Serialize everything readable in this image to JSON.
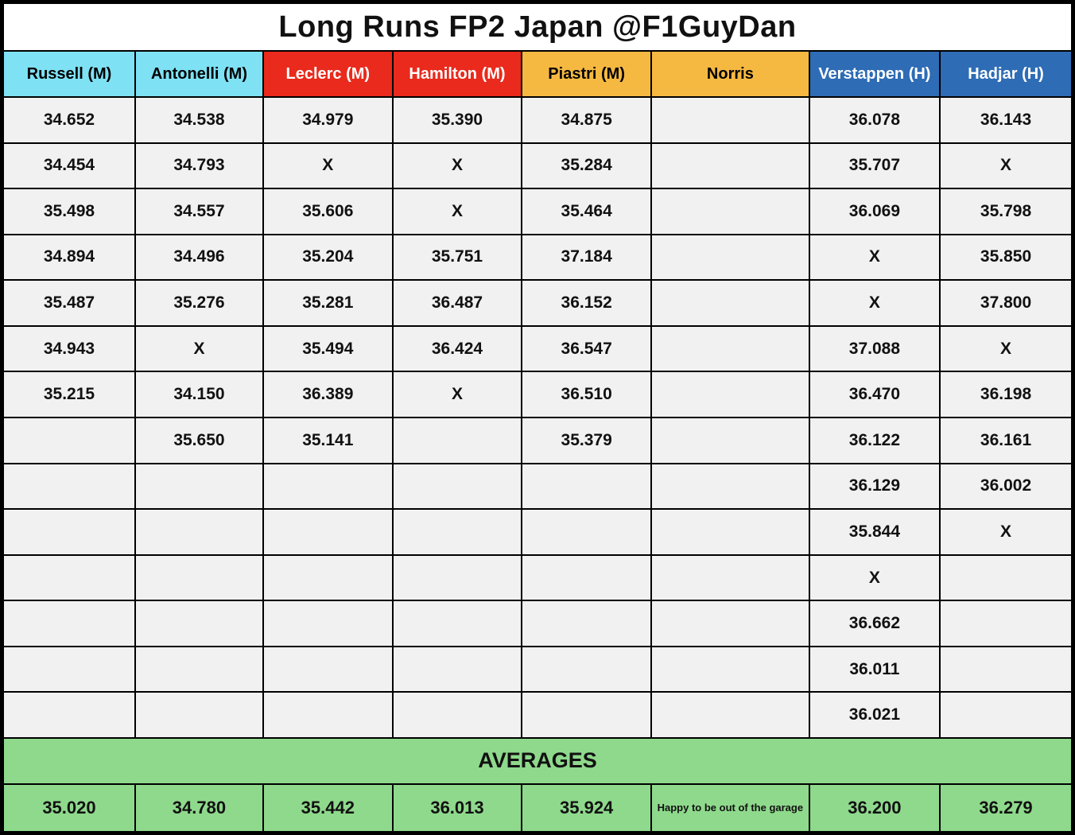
{
  "title": "Long Runs FP2 Japan @F1GuyDan",
  "colors": {
    "border": "#000000",
    "title_bg": "#ffffff",
    "cell_bg": "#f1f1f1",
    "mercedes_cyan": "#7ee1f4",
    "ferrari_red": "#e92a1c",
    "mclaren_yellow": "#f5b942",
    "redbull_blue": "#2e6cb5",
    "averages_green": "#8fd98c"
  },
  "chart_data": {
    "type": "table",
    "title": "Long Runs FP2 Japan @F1GuyDan",
    "columns": [
      {
        "label": "Russell (M)",
        "bg": "#7ee1f4",
        "text": "#000000"
      },
      {
        "label": "Antonelli (M)",
        "bg": "#7ee1f4",
        "text": "#000000"
      },
      {
        "label": "Leclerc (M)",
        "bg": "#e92a1c",
        "text": "#ffffff"
      },
      {
        "label": "Hamilton (M)",
        "bg": "#e92a1c",
        "text": "#ffffff"
      },
      {
        "label": "Piastri (M)",
        "bg": "#f5b942",
        "text": "#000000"
      },
      {
        "label": "Norris",
        "bg": "#f5b942",
        "text": "#000000"
      },
      {
        "label": "Verstappen (H)",
        "bg": "#2e6cb5",
        "text": "#ffffff"
      },
      {
        "label": "Hadjar (H)",
        "bg": "#2e6cb5",
        "text": "#ffffff"
      }
    ],
    "rows": [
      [
        "34.652",
        "34.538",
        "34.979",
        "35.390",
        "34.875",
        "",
        "36.078",
        "36.143"
      ],
      [
        "34.454",
        "34.793",
        "X",
        "X",
        "35.284",
        "",
        "35.707",
        "X"
      ],
      [
        "35.498",
        "34.557",
        "35.606",
        "X",
        "35.464",
        "",
        "36.069",
        "35.798"
      ],
      [
        "34.894",
        "34.496",
        "35.204",
        "35.751",
        "37.184",
        "",
        "X",
        "35.850"
      ],
      [
        "35.487",
        "35.276",
        "35.281",
        "36.487",
        "36.152",
        "",
        "X",
        "37.800"
      ],
      [
        "34.943",
        "X",
        "35.494",
        "36.424",
        "36.547",
        "",
        "37.088",
        "X"
      ],
      [
        "35.215",
        "34.150",
        "36.389",
        "X",
        "36.510",
        "",
        "36.470",
        "36.198"
      ],
      [
        "",
        "35.650",
        "35.141",
        "",
        "35.379",
        "",
        "36.122",
        "36.161"
      ],
      [
        "",
        "",
        "",
        "",
        "",
        "",
        "36.129",
        "36.002"
      ],
      [
        "",
        "",
        "",
        "",
        "",
        "",
        "35.844",
        "X"
      ],
      [
        "",
        "",
        "",
        "",
        "",
        "",
        "X",
        ""
      ],
      [
        "",
        "",
        "",
        "",
        "",
        "",
        "36.662",
        ""
      ],
      [
        "",
        "",
        "",
        "",
        "",
        "",
        "36.011",
        ""
      ],
      [
        "",
        "",
        "",
        "",
        "",
        "",
        "36.021",
        ""
      ]
    ],
    "averages_label": "AVERAGES",
    "averages": [
      "35.020",
      "34.780",
      "35.442",
      "36.013",
      "35.924",
      "Happy to be out of the garage",
      "36.200",
      "36.279"
    ]
  }
}
